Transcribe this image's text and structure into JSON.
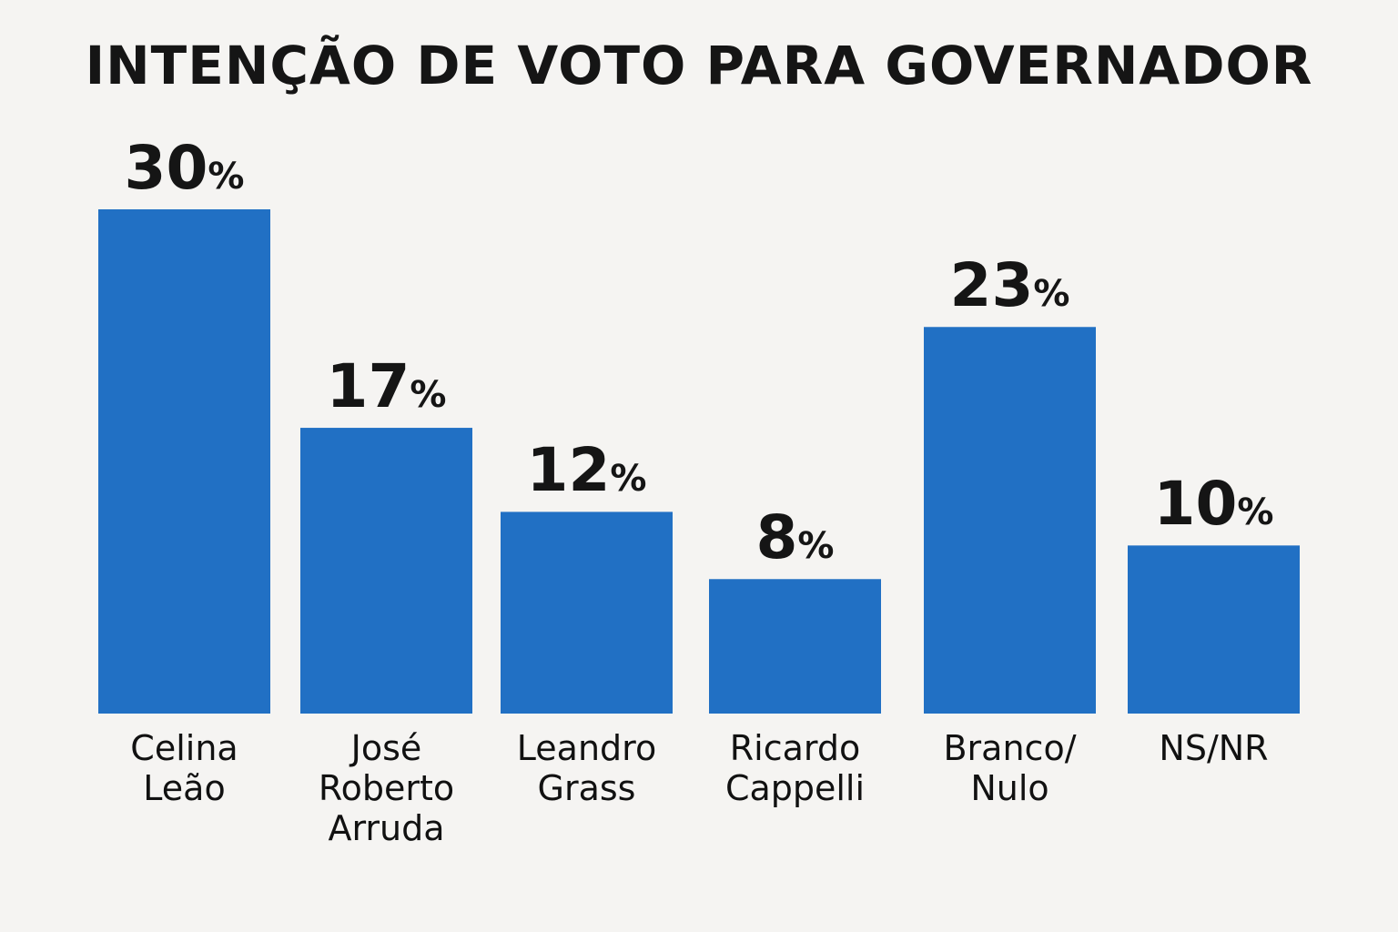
{
  "chart_data": {
    "type": "bar",
    "title": "INTENÇÃO DE VOTO PARA GOVERNADOR",
    "categories": [
      "Celina\nLeão",
      "José\nRoberto\nArruda",
      "Leandro\nGrass",
      "Ricardo\nCappelli",
      "Branco/\nNulo",
      "NS/NR"
    ],
    "values": [
      30,
      17,
      12,
      8,
      23,
      10
    ],
    "value_suffix": "%",
    "xlabel": "",
    "ylabel": "",
    "ylim": [
      0,
      30
    ],
    "grid": false,
    "colors": {
      "bar": "#2170c4",
      "background": "#f5f4f2",
      "text": "#151515"
    }
  }
}
